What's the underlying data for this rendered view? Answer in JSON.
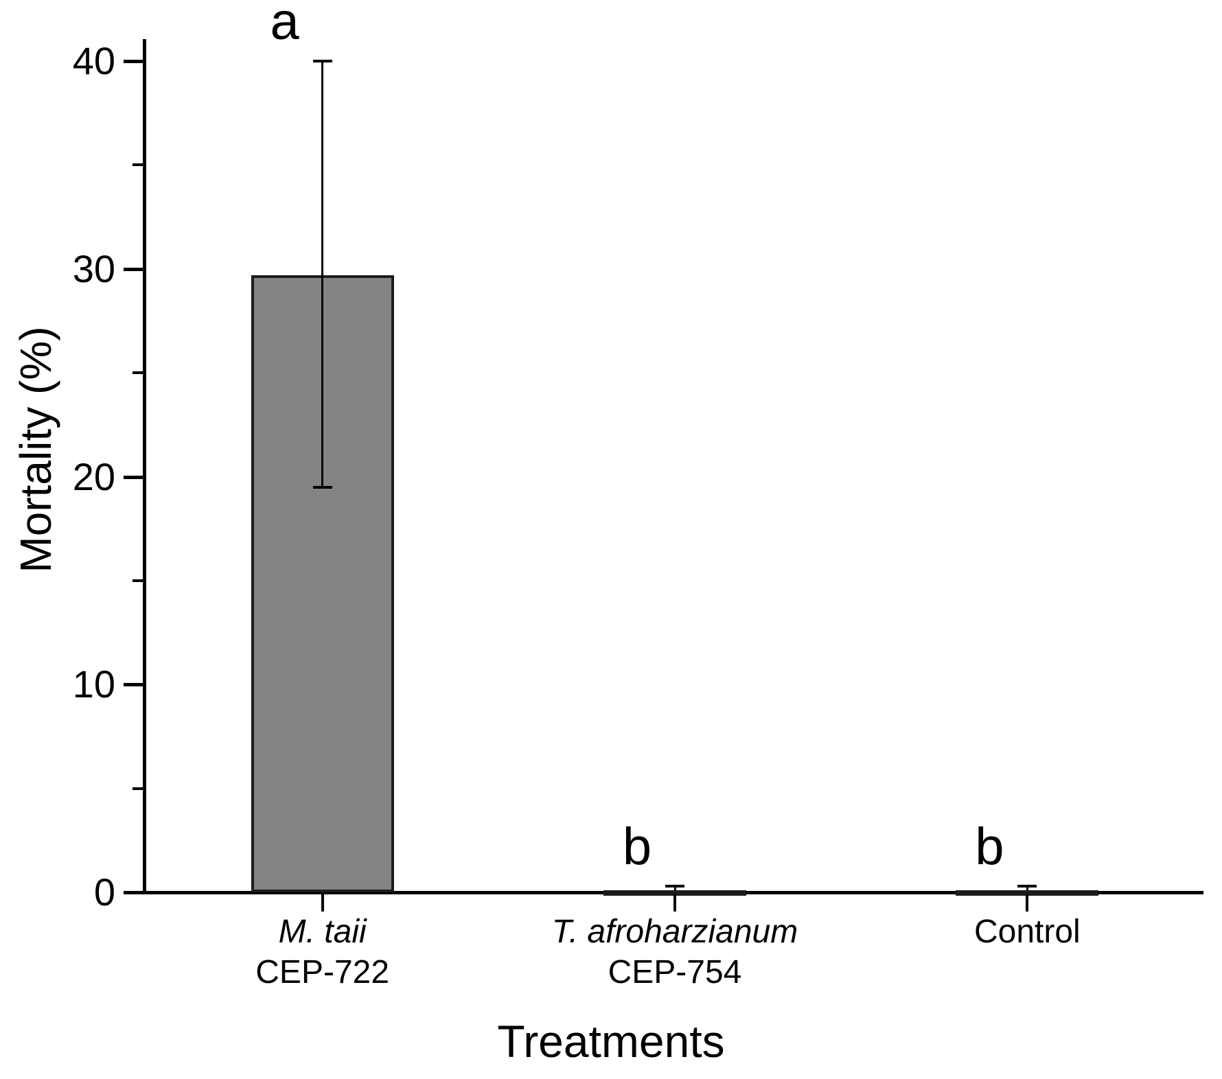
{
  "chart_data": {
    "type": "bar",
    "title": "",
    "xlabel": "Treatments",
    "ylabel": "Mortality (%)",
    "ylim": [
      0,
      41
    ],
    "yticks_major": [
      0,
      10,
      20,
      30,
      40
    ],
    "yticks_minor": [
      5,
      15,
      25,
      35
    ],
    "grid": false,
    "legend": "none",
    "bar_fill_color": "#848484",
    "bar_edge_color": "#1c1c1c",
    "axis_color": "#000000",
    "categories": [
      {
        "line1": "M. taii",
        "line1_italic": true,
        "line2": "CEP-722"
      },
      {
        "line1": "T. afroharzianum",
        "line1_italic": true,
        "line2": "CEP-754"
      },
      {
        "line1": "Control",
        "line1_italic": false,
        "line2": ""
      }
    ],
    "series": [
      {
        "name": "Mortality (%)",
        "values": [
          29.7,
          0.1,
          0.1
        ]
      }
    ],
    "error_upper": [
      40.0,
      0.3,
      0.3
    ],
    "error_lower": [
      19.5,
      null,
      null
    ],
    "sig_letters": [
      "a",
      "b",
      "b"
    ]
  }
}
